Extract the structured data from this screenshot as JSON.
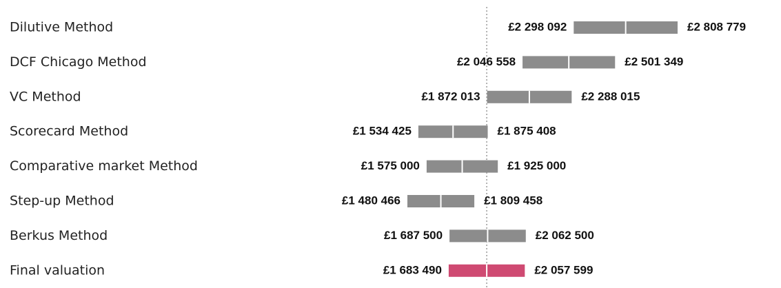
{
  "chart_data": {
    "type": "range",
    "categories": [
      "Dilutive Method",
      "DCF Chicago Method",
      "VC Method",
      "Scorecard Method",
      "Comparative market Method",
      "Step-up Method",
      "Berkus Method",
      "Final valuation"
    ],
    "values": [
      [
        2298092,
        2808779
      ],
      [
        2046558,
        2501349
      ],
      [
        1872013,
        2288015
      ],
      [
        1534425,
        1875408
      ],
      [
        1575000,
        1925000
      ],
      [
        1480466,
        1809458
      ],
      [
        1687500,
        2062500
      ],
      [
        1683490,
        2057599
      ]
    ],
    "value_labels": [
      [
        "£2 298 092",
        "£2 808 779"
      ],
      [
        "£2 046 558",
        "£2 501 349"
      ],
      [
        "£1 872 013",
        "£2 288 015"
      ],
      [
        "£1 534 425",
        "£1 875 408"
      ],
      [
        "£1 575 000",
        "£1 925 000"
      ],
      [
        "£1 480 466",
        "£1 809 458"
      ],
      [
        "£1 687 500",
        "£2 062 500"
      ],
      [
        "£1 683 490",
        "£2 057 599"
      ]
    ],
    "colors": [
      "#8c8c8c",
      "#8c8c8c",
      "#8c8c8c",
      "#8c8c8c",
      "#8c8c8c",
      "#8c8c8c",
      "#8c8c8c",
      "#cf4a72"
    ]
  }
}
